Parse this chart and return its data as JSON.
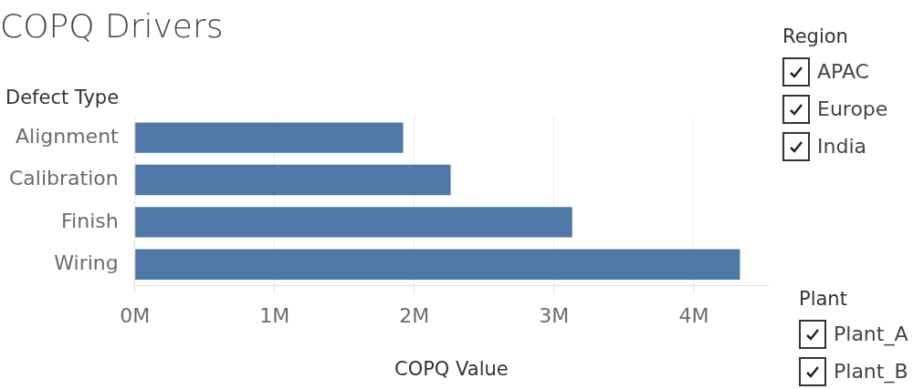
{
  "chart_data": {
    "type": "bar",
    "orientation": "horizontal",
    "title": "COPQ Drivers",
    "ylabel": "Defect Type",
    "xlabel": "COPQ Value",
    "categories": [
      "Alignment",
      "Calibration",
      "Finish",
      "Wiring"
    ],
    "values": [
      1.92,
      2.26,
      3.13,
      4.33
    ],
    "color": "#4e79a7",
    "xlim": [
      0,
      4.53
    ],
    "xticks": [
      {
        "value": 0,
        "label": "0M"
      },
      {
        "value": 1,
        "label": "1M"
      },
      {
        "value": 2,
        "label": "2M"
      },
      {
        "value": 3,
        "label": "3M"
      },
      {
        "value": 4,
        "label": "4M"
      }
    ],
    "grid": "x",
    "legend": false,
    "annotations": [
      "Region",
      "APAC",
      "Europe",
      "India",
      "Plant",
      "Plant_A",
      "Plant_B"
    ]
  }
}
